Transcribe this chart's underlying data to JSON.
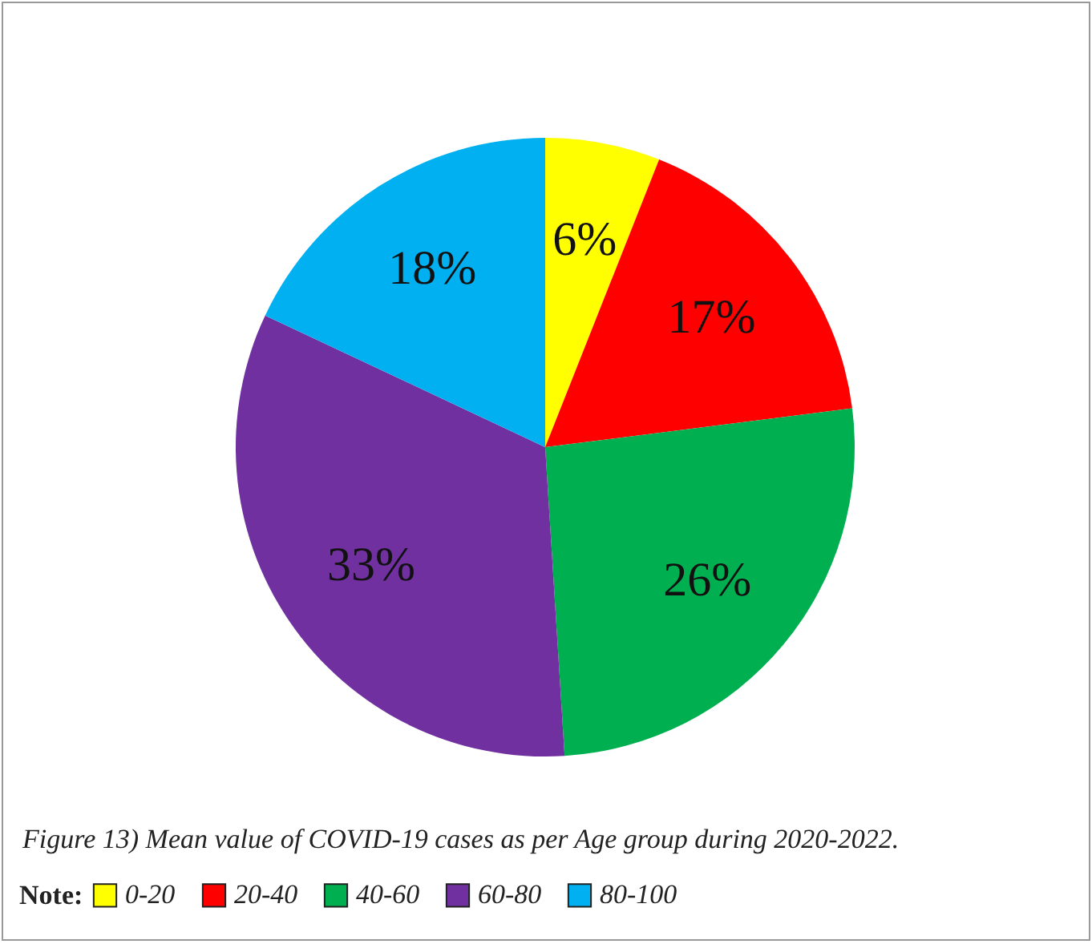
{
  "chart_data": {
    "type": "pie",
    "categories": [
      "0-20",
      "20-40",
      "40-60",
      "60-80",
      "80-100"
    ],
    "values": [
      6,
      17,
      26,
      33,
      18
    ],
    "colors": [
      "#ffff00",
      "#ff0000",
      "#00b050",
      "#7030a0",
      "#00b0f0"
    ],
    "value_labels": [
      "6%",
      "17%",
      "26%",
      "33%",
      "18%"
    ],
    "legend": "bottom",
    "legend_title": "Note:",
    "annotations": [
      "Figure 13) Mean value of COVID-19 cases as per Age group during 2020-2022."
    ]
  }
}
